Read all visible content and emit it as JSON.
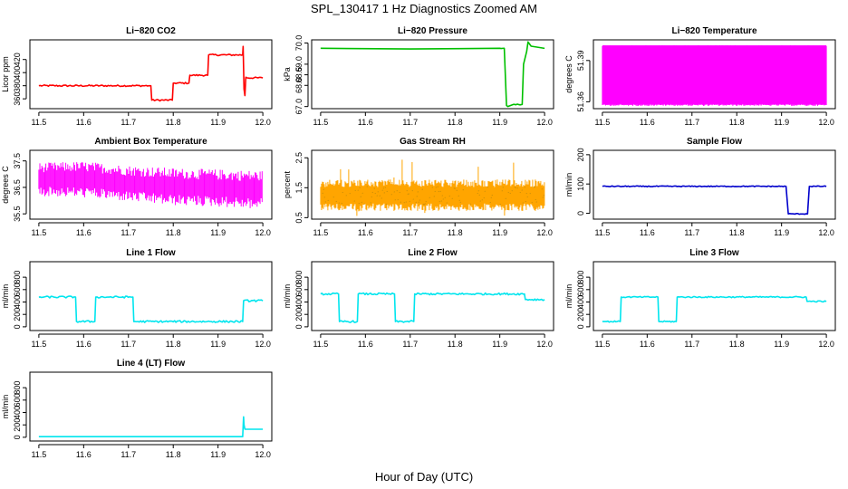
{
  "figure": {
    "title": "SPL_130417  1 Hz Diagnostics Zoomed AM",
    "xlabel": "Hour of Day (UTC)"
  },
  "chart_data": [
    {
      "type": "line",
      "title": "Li−820 CO2",
      "ylabel": "Licor ppm",
      "color": "#ff0000",
      "xlim": [
        11.48,
        12.02
      ],
      "ylim": [
        345,
        450
      ],
      "xticks": [
        "11.5",
        "11.6",
        "11.7",
        "11.8",
        "11.9",
        "12.0"
      ],
      "yticks": [
        "360",
        "380",
        "400",
        "420"
      ],
      "x": [
        11.5,
        11.75,
        11.752,
        11.798,
        11.8,
        11.835,
        11.837,
        11.877,
        11.879,
        11.955,
        11.956,
        11.958,
        11.96,
        11.962,
        11.965,
        12.0
      ],
      "y": [
        380,
        380,
        358,
        358,
        384,
        384,
        396,
        396,
        427,
        427,
        440,
        375,
        365,
        393,
        392,
        392
      ],
      "noise": 1.2
    },
    {
      "type": "line",
      "title": "Li−820 Pressure",
      "ylabel": "kPa",
      "color": "#00c000",
      "xlim": [
        11.48,
        12.02
      ],
      "ylim": [
        66.9,
        70.15
      ],
      "xticks": [
        "11.5",
        "11.6",
        "11.7",
        "11.8",
        "11.9",
        "12.0"
      ],
      "yticks": [
        "67.0",
        "68.0",
        "68.5",
        "69.0",
        "70.0"
      ],
      "x": [
        11.5,
        11.7,
        11.9,
        11.91,
        11.915,
        11.918,
        11.93,
        11.95,
        11.953,
        11.96,
        11.963,
        11.97,
        12.0
      ],
      "y": [
        69.75,
        69.72,
        69.75,
        69.75,
        67.05,
        67.0,
        67.1,
        67.1,
        69.0,
        69.6,
        70.05,
        69.85,
        69.75
      ],
      "noise": 0.02
    },
    {
      "type": "line",
      "title": "Li−820 Temperature",
      "ylabel": "degrees C",
      "color": "#ff00ff",
      "xlim": [
        11.48,
        12.02
      ],
      "ylim": [
        51.355,
        51.405
      ],
      "xticks": [
        "11.5",
        "11.6",
        "11.7",
        "11.8",
        "11.9",
        "12.0"
      ],
      "yticks": [
        "51.36",
        "51.39"
      ],
      "band": [
        51.358,
        51.401
      ],
      "x": [
        11.5,
        12.0
      ],
      "y": [
        51.358,
        51.401
      ]
    },
    {
      "type": "line",
      "title": "Ambient Box Temperature",
      "ylabel": "degrees C",
      "color": "#ff00ff",
      "xlim": [
        11.48,
        12.02
      ],
      "ylim": [
        35.3,
        37.9
      ],
      "xticks": [
        "11.5",
        "11.6",
        "11.7",
        "11.8",
        "11.9",
        "12.0"
      ],
      "yticks": [
        "35.5",
        "36.5",
        "37.5"
      ],
      "x": [
        11.5,
        11.6,
        11.7,
        11.8,
        11.9,
        12.0
      ],
      "y_hi": [
        37.4,
        37.45,
        37.3,
        37.2,
        37.15,
        37.1
      ],
      "y_lo": [
        36.2,
        36.15,
        36.0,
        35.85,
        35.8,
        35.7
      ]
    },
    {
      "type": "line",
      "title": "Gas Stream RH",
      "ylabel": "percent",
      "color": "#ffa500",
      "overlay_color": "#b8860b",
      "xlim": [
        11.48,
        12.02
      ],
      "ylim": [
        0.45,
        2.75
      ],
      "xticks": [
        "11.5",
        "11.6",
        "11.7",
        "11.8",
        "11.9",
        "12.0"
      ],
      "yticks": [
        "0.5",
        "1.5",
        "2.5"
      ],
      "x": [
        11.5,
        12.0
      ],
      "y_mid": [
        1.25,
        1.25
      ],
      "y_spread": [
        0.85,
        1.65
      ]
    },
    {
      "type": "line",
      "title": "Sample Flow",
      "ylabel": "ml/min",
      "color": "#0000cc",
      "xlim": [
        11.48,
        12.02
      ],
      "ylim": [
        -20,
        215
      ],
      "xticks": [
        "11.5",
        "11.6",
        "11.7",
        "11.8",
        "11.9",
        "12.0"
      ],
      "yticks": [
        "0",
        "100",
        "200"
      ],
      "x": [
        11.5,
        11.91,
        11.915,
        11.958,
        11.962,
        12.0
      ],
      "y": [
        92,
        92,
        -2,
        -2,
        92,
        92
      ],
      "noise": 1.5
    },
    {
      "type": "line",
      "title": "Line 1 Flow",
      "ylabel": "ml/min",
      "color": "#00e5ee",
      "xlim": [
        11.48,
        12.02
      ],
      "ylim": [
        -60,
        1050
      ],
      "xticks": [
        "11.5",
        "11.6",
        "11.7",
        "11.8",
        "11.9",
        "12.0"
      ],
      "yticks": [
        "0",
        "200",
        "400",
        "600",
        "800"
      ],
      "x": [
        11.5,
        11.582,
        11.584,
        11.625,
        11.627,
        11.71,
        11.712,
        11.955,
        11.957,
        12.0
      ],
      "y": [
        480,
        480,
        85,
        85,
        480,
        480,
        85,
        85,
        420,
        420
      ],
      "noise": 15
    },
    {
      "type": "line",
      "title": "Line 2 Flow",
      "ylabel": "ml/min",
      "color": "#00e5ee",
      "xlim": [
        11.48,
        12.02
      ],
      "ylim": [
        -60,
        1050
      ],
      "xticks": [
        "11.5",
        "11.6",
        "11.7",
        "11.8",
        "11.9",
        "12.0"
      ],
      "yticks": [
        "0",
        "200",
        "400",
        "600",
        "800"
      ],
      "x": [
        11.5,
        11.54,
        11.542,
        11.582,
        11.584,
        11.665,
        11.667,
        11.708,
        11.71,
        11.955,
        11.957,
        12.0
      ],
      "y": [
        530,
        530,
        85,
        85,
        530,
        530,
        85,
        85,
        530,
        530,
        440,
        440
      ],
      "noise": 15
    },
    {
      "type": "line",
      "title": "Line 3 Flow",
      "ylabel": "ml/min",
      "color": "#00e5ee",
      "xlim": [
        11.48,
        12.02
      ],
      "ylim": [
        -60,
        1050
      ],
      "xticks": [
        "11.5",
        "11.6",
        "11.7",
        "11.8",
        "11.9",
        "12.0"
      ],
      "yticks": [
        "0",
        "200",
        "400",
        "600",
        "800"
      ],
      "x": [
        11.5,
        11.54,
        11.542,
        11.624,
        11.626,
        11.665,
        11.667,
        11.955,
        11.957,
        12.0
      ],
      "y": [
        85,
        85,
        480,
        480,
        85,
        85,
        480,
        480,
        410,
        410
      ],
      "noise": 10
    },
    {
      "type": "line",
      "title": "Line 4 (LT) Flow",
      "ylabel": "ml/min",
      "color": "#00e5ee",
      "xlim": [
        11.48,
        12.02
      ],
      "ylim": [
        -60,
        1050
      ],
      "xticks": [
        "11.5",
        "11.6",
        "11.7",
        "11.8",
        "11.9",
        "12.0"
      ],
      "yticks": [
        "0",
        "200",
        "400",
        "600",
        "800"
      ],
      "x": [
        11.5,
        11.955,
        11.957,
        11.958,
        11.96,
        11.963,
        12.0
      ],
      "y": [
        10,
        10,
        330,
        200,
        130,
        130,
        130
      ],
      "noise": 0
    }
  ]
}
